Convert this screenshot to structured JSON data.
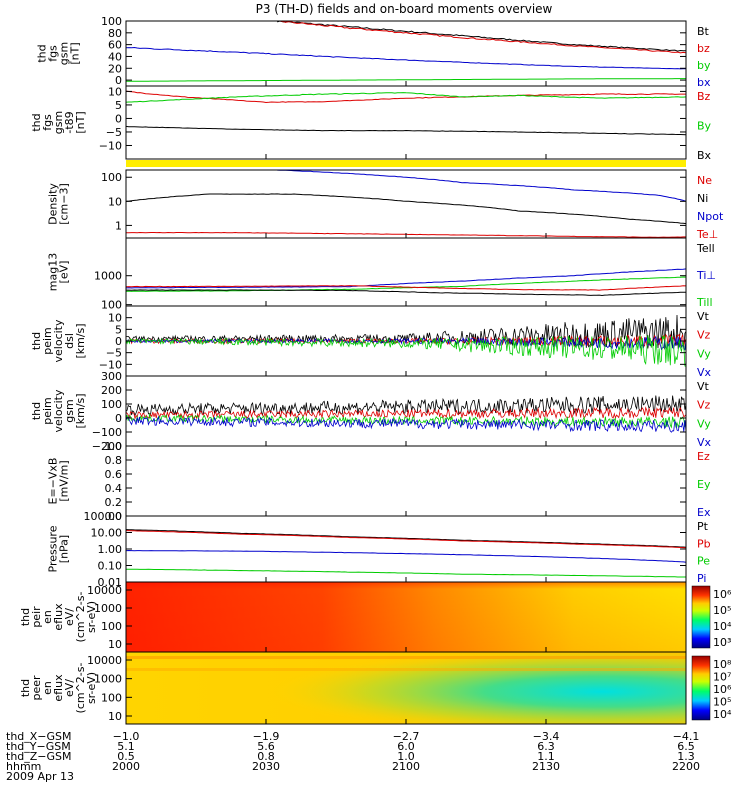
{
  "title": "P3 (TH-D) fields and on-board moments overview",
  "colors": {
    "black": "#000000",
    "red": "#dd0000",
    "green": "#00cc00",
    "blue": "#0000cc",
    "yellow": "#ffee00"
  },
  "chart_data": [
    {
      "id": "fgs_gsm",
      "type": "line",
      "ylabel": [
        "thd",
        "fgs",
        "gsm",
        "[nT]"
      ],
      "ylim": [
        -10,
        100
      ],
      "yticks": [
        "100",
        "80",
        "60",
        "40",
        "20",
        "0"
      ],
      "ytick_values": [
        100,
        80,
        60,
        40,
        20,
        0
      ],
      "legend": [
        {
          "label": "Bt",
          "color": "black"
        },
        {
          "label": "bz",
          "color": "red"
        },
        {
          "label": "by",
          "color": "green"
        },
        {
          "label": "bx",
          "color": "blue"
        }
      ],
      "series": [
        {
          "name": "Bt",
          "color": "black",
          "x": [
            0.27,
            0.4,
            0.6,
            0.8,
            1.0
          ],
          "y": [
            100,
            90,
            75,
            60,
            49
          ]
        },
        {
          "name": "bz",
          "color": "red",
          "x": [
            0.27,
            0.4,
            0.6,
            0.8,
            1.0
          ],
          "y": [
            100,
            88,
            72,
            58,
            46
          ]
        },
        {
          "name": "by",
          "color": "green",
          "x": [
            0,
            0.2,
            0.4,
            0.6,
            0.8,
            1.0
          ],
          "y": [
            -2,
            -1,
            0,
            1,
            2,
            2.5
          ]
        },
        {
          "name": "bx",
          "color": "blue",
          "x": [
            0,
            0.2,
            0.4,
            0.6,
            0.8,
            1.0
          ],
          "y": [
            55,
            47,
            38,
            30,
            23,
            19
          ]
        }
      ]
    },
    {
      "id": "fgs_gsm_t89",
      "type": "line",
      "ylabel": [
        "thd",
        "fgs",
        "gsm",
        "-t89",
        "[nT]"
      ],
      "ylim": [
        -15,
        12
      ],
      "yticks": [
        "10",
        "5",
        "0",
        "−5",
        "−10"
      ],
      "ytick_values": [
        10,
        5,
        0,
        -5,
        -10
      ],
      "legend": [
        {
          "label": "Bz",
          "color": "red"
        },
        {
          "label": "By",
          "color": "green"
        },
        {
          "label": "Bx",
          "color": "black"
        }
      ],
      "series": [
        {
          "name": "Bz",
          "color": "red",
          "x": [
            0,
            0.1,
            0.25,
            0.35,
            0.5,
            0.7,
            0.85,
            1.0
          ],
          "y": [
            10,
            8,
            6,
            6.2,
            7.5,
            8.5,
            9,
            9
          ]
        },
        {
          "name": "By",
          "color": "green",
          "x": [
            0,
            0.1,
            0.2,
            0.35,
            0.5,
            0.6,
            0.7,
            0.85,
            1.0
          ],
          "y": [
            6,
            7,
            8,
            9,
            9.5,
            8,
            8.5,
            7.5,
            8
          ]
        },
        {
          "name": "Bx",
          "color": "black",
          "x": [
            0,
            0.1,
            0.2,
            0.35,
            0.5,
            0.7,
            0.85,
            1.0
          ],
          "y": [
            -3,
            -3.5,
            -4,
            -4.5,
            -4.5,
            -5,
            -5.5,
            -6
          ]
        }
      ]
    },
    {
      "id": "density",
      "type": "line",
      "yscale": "log",
      "ylabel": [
        "Density",
        "[cm−3]"
      ],
      "ylim": [
        0.3,
        200
      ],
      "yticks": [
        "100",
        "10",
        "1"
      ],
      "ytick_values": [
        100,
        10,
        1
      ],
      "legend": [
        {
          "label": "Ne",
          "color": "red"
        },
        {
          "label": "Ni",
          "color": "black"
        },
        {
          "label": "Npot",
          "color": "blue"
        },
        {
          "label": "Te⊥",
          "color": "red"
        }
      ],
      "series": [
        {
          "name": "Npot",
          "color": "blue",
          "x": [
            0.27,
            0.45,
            0.6,
            0.8,
            0.95,
            1.0
          ],
          "y": [
            200,
            120,
            60,
            30,
            18,
            10
          ]
        },
        {
          "name": "Ni",
          "color": "black",
          "x": [
            0,
            0.15,
            0.3,
            0.5,
            0.7,
            0.9,
            1.0
          ],
          "y": [
            10,
            20,
            20,
            10,
            4,
            1.8,
            1.2
          ]
        },
        {
          "name": "Ne",
          "color": "red",
          "x": [
            0,
            0.2,
            0.4,
            0.6,
            0.8,
            0.95,
            1.0
          ],
          "y": [
            0.5,
            0.5,
            0.45,
            0.4,
            0.35,
            0.32,
            0.33
          ]
        }
      ]
    },
    {
      "id": "temperature",
      "type": "line",
      "yscale": "log",
      "ylabel": [
        "mag13",
        "[eV]"
      ],
      "ylim": [
        90,
        20000
      ],
      "yticks": [
        "1000",
        "100"
      ],
      "ytick_values": [
        1000,
        100
      ],
      "legend": [
        {
          "label": "Tell",
          "color": "black"
        },
        {
          "label": "Ti⊥",
          "color": "blue"
        },
        {
          "label": "Till",
          "color": "green"
        }
      ],
      "series": [
        {
          "name": "Ti⊥",
          "color": "blue",
          "x": [
            0,
            0.2,
            0.4,
            0.6,
            0.8,
            1.0
          ],
          "y": [
            380,
            400,
            420,
            650,
            1000,
            1700
          ]
        },
        {
          "name": "Till",
          "color": "green",
          "x": [
            0,
            0.2,
            0.4,
            0.6,
            0.8,
            1.0
          ],
          "y": [
            290,
            300,
            340,
            430,
            650,
            900
          ]
        },
        {
          "name": "Te⊥",
          "color": "red",
          "x": [
            0,
            0.2,
            0.4,
            0.55,
            0.7,
            0.85,
            1.0
          ],
          "y": [
            420,
            430,
            450,
            380,
            330,
            320,
            450
          ]
        },
        {
          "name": "Tell",
          "color": "black",
          "x": [
            0,
            0.2,
            0.4,
            0.55,
            0.7,
            0.85,
            1.0
          ],
          "y": [
            320,
            320,
            310,
            260,
            230,
            210,
            270
          ]
        }
      ]
    },
    {
      "id": "velocity_dsl",
      "type": "line",
      "ylabel": [
        "thd",
        "peim",
        "velocity",
        "dsl",
        "[km/s]"
      ],
      "ylim": [
        -15,
        15
      ],
      "yticks": [
        "10",
        "5",
        "0",
        "−5",
        "−10"
      ],
      "ytick_values": [
        10,
        5,
        0,
        -5,
        -10
      ],
      "legend": [
        {
          "label": "Vt",
          "color": "black"
        },
        {
          "label": "Vz",
          "color": "red"
        },
        {
          "label": "Vy",
          "color": "green"
        },
        {
          "label": "Vx",
          "color": "blue"
        }
      ],
      "noise_series": [
        {
          "name": "Vt",
          "color": "black",
          "center": [
            1,
            1,
            4
          ],
          "amp": [
            1,
            2,
            8
          ]
        },
        {
          "name": "Vz",
          "color": "red",
          "center": [
            0,
            0,
            0
          ],
          "amp": [
            1,
            1,
            3
          ]
        },
        {
          "name": "Vx",
          "color": "blue",
          "center": [
            0,
            0,
            -1
          ],
          "amp": [
            0.6,
            1,
            3
          ]
        },
        {
          "name": "Vy",
          "color": "green",
          "center": [
            0,
            -1,
            -4
          ],
          "amp": [
            1,
            2,
            7
          ]
        }
      ]
    },
    {
      "id": "velocity_gsm",
      "type": "line",
      "ylabel": [
        "thd",
        "peim",
        "velocity",
        "gsm",
        "[km/s]"
      ],
      "ylim": [
        -200,
        300
      ],
      "yticks": [
        "300",
        "200",
        "100",
        "0",
        "−100",
        "−200"
      ],
      "ytick_values": [
        300,
        200,
        100,
        0,
        -100,
        -200
      ],
      "legend": [
        {
          "label": "Vt",
          "color": "black"
        },
        {
          "label": "Vz",
          "color": "red"
        },
        {
          "label": "Vy",
          "color": "green"
        },
        {
          "label": "Vx",
          "color": "blue"
        }
      ],
      "noise_series": [
        {
          "name": "Vt",
          "color": "black",
          "center": [
            60,
            80,
            100
          ],
          "amp": [
            40,
            50,
            70
          ]
        },
        {
          "name": "Vz",
          "color": "red",
          "center": [
            20,
            30,
            40
          ],
          "amp": [
            25,
            30,
            40
          ]
        },
        {
          "name": "Vy",
          "color": "green",
          "center": [
            0,
            -20,
            -30
          ],
          "amp": [
            25,
            30,
            40
          ]
        },
        {
          "name": "Vx",
          "color": "blue",
          "center": [
            -20,
            -40,
            -60
          ],
          "amp": [
            30,
            35,
            45
          ]
        }
      ]
    },
    {
      "id": "e_vxb",
      "type": "line",
      "ylabel": [
        "E=−VxB",
        "[mV/m]"
      ],
      "ylim": [
        0,
        1
      ],
      "yticks": [
        "1.0",
        "0.8",
        "0.6",
        "0.4",
        "0.2",
        "0.0"
      ],
      "ytick_values": [
        1,
        0.8,
        0.6,
        0.4,
        0.2,
        0
      ],
      "legend": [
        {
          "label": "Ez",
          "color": "red"
        },
        {
          "label": "Ey",
          "color": "green"
        },
        {
          "label": "Ex",
          "color": "blue"
        }
      ],
      "series": []
    },
    {
      "id": "pressure",
      "type": "line",
      "yscale": "log",
      "ylabel": [
        "Pressure",
        "[nPa]"
      ],
      "ylim": [
        0.01,
        100
      ],
      "yticks": [
        "100.00",
        "10.00",
        "1.00",
        "0.10",
        "0.01"
      ],
      "ytick_values": [
        100,
        10,
        1,
        0.1,
        0.01
      ],
      "legend": [
        {
          "label": "Pt",
          "color": "black"
        },
        {
          "label": "Pb",
          "color": "red"
        },
        {
          "label": "Pe",
          "color": "green"
        },
        {
          "label": "Pi",
          "color": "blue"
        }
      ],
      "series": [
        {
          "name": "Pt",
          "color": "black",
          "x": [
            0,
            0.2,
            0.4,
            0.6,
            0.8,
            1.0
          ],
          "y": [
            15,
            9,
            5.5,
            3.4,
            2.2,
            1.3
          ]
        },
        {
          "name": "Pb",
          "color": "red",
          "x": [
            0,
            0.2,
            0.4,
            0.6,
            0.8,
            1.0
          ],
          "y": [
            13,
            8,
            5,
            3.1,
            2,
            1.2
          ]
        },
        {
          "name": "Pi",
          "color": "blue",
          "x": [
            0,
            0.2,
            0.4,
            0.6,
            0.8,
            1.0
          ],
          "y": [
            0.8,
            0.75,
            0.6,
            0.45,
            0.3,
            0.16
          ]
        },
        {
          "name": "Pe",
          "color": "green",
          "x": [
            0,
            0.2,
            0.4,
            0.6,
            0.8,
            1.0
          ],
          "y": [
            0.06,
            0.05,
            0.04,
            0.03,
            0.025,
            0.02
          ]
        }
      ]
    },
    {
      "id": "peir_eflux",
      "type": "heatmap",
      "ylabel": [
        "thd",
        "peir",
        "en",
        "eflux",
        "eV/",
        "(cm^2-s-",
        "sr-eV)"
      ],
      "yticks": [
        "10000",
        "1000",
        "100",
        "10"
      ],
      "colorbar_ticks": [
        "10⁶",
        "10⁵",
        "10⁴",
        "10³"
      ],
      "description": "ion spectrogram, red at low energy left side fading to orange/yellow at right"
    },
    {
      "id": "peer_eflux",
      "type": "heatmap",
      "ylabel": [
        "thd",
        "peer",
        "en",
        "eflux",
        "eV/",
        "(cm^2-s-",
        "sr-eV)"
      ],
      "yticks": [
        "10000",
        "1000",
        "100",
        "10"
      ],
      "colorbar_ticks": [
        "10⁸",
        "10⁷",
        "10⁶",
        "10⁵",
        "10⁴"
      ],
      "description": "electron spectrogram, yellow background with green/cyan band growing toward right"
    }
  ],
  "xaxis": {
    "row_labels": [
      "thd_X−GSM",
      "thd_Y−GSM",
      "thd_Z−GSM",
      "hhmm",
      "2009 Apr 13"
    ],
    "columns": [
      {
        "x": "−1.0",
        "y": "5.1",
        "z": "0.5",
        "t": "2000"
      },
      {
        "x": "−1.9",
        "y": "5.6",
        "z": "0.8",
        "t": "2030"
      },
      {
        "x": "−2.7",
        "y": "6.0",
        "z": "1.0",
        "t": "2100"
      },
      {
        "x": "−3.4",
        "y": "6.3",
        "z": "1.1",
        "t": "2130"
      },
      {
        "x": "−4.1",
        "y": "6.5",
        "z": "1.3",
        "t": "2200"
      }
    ]
  }
}
